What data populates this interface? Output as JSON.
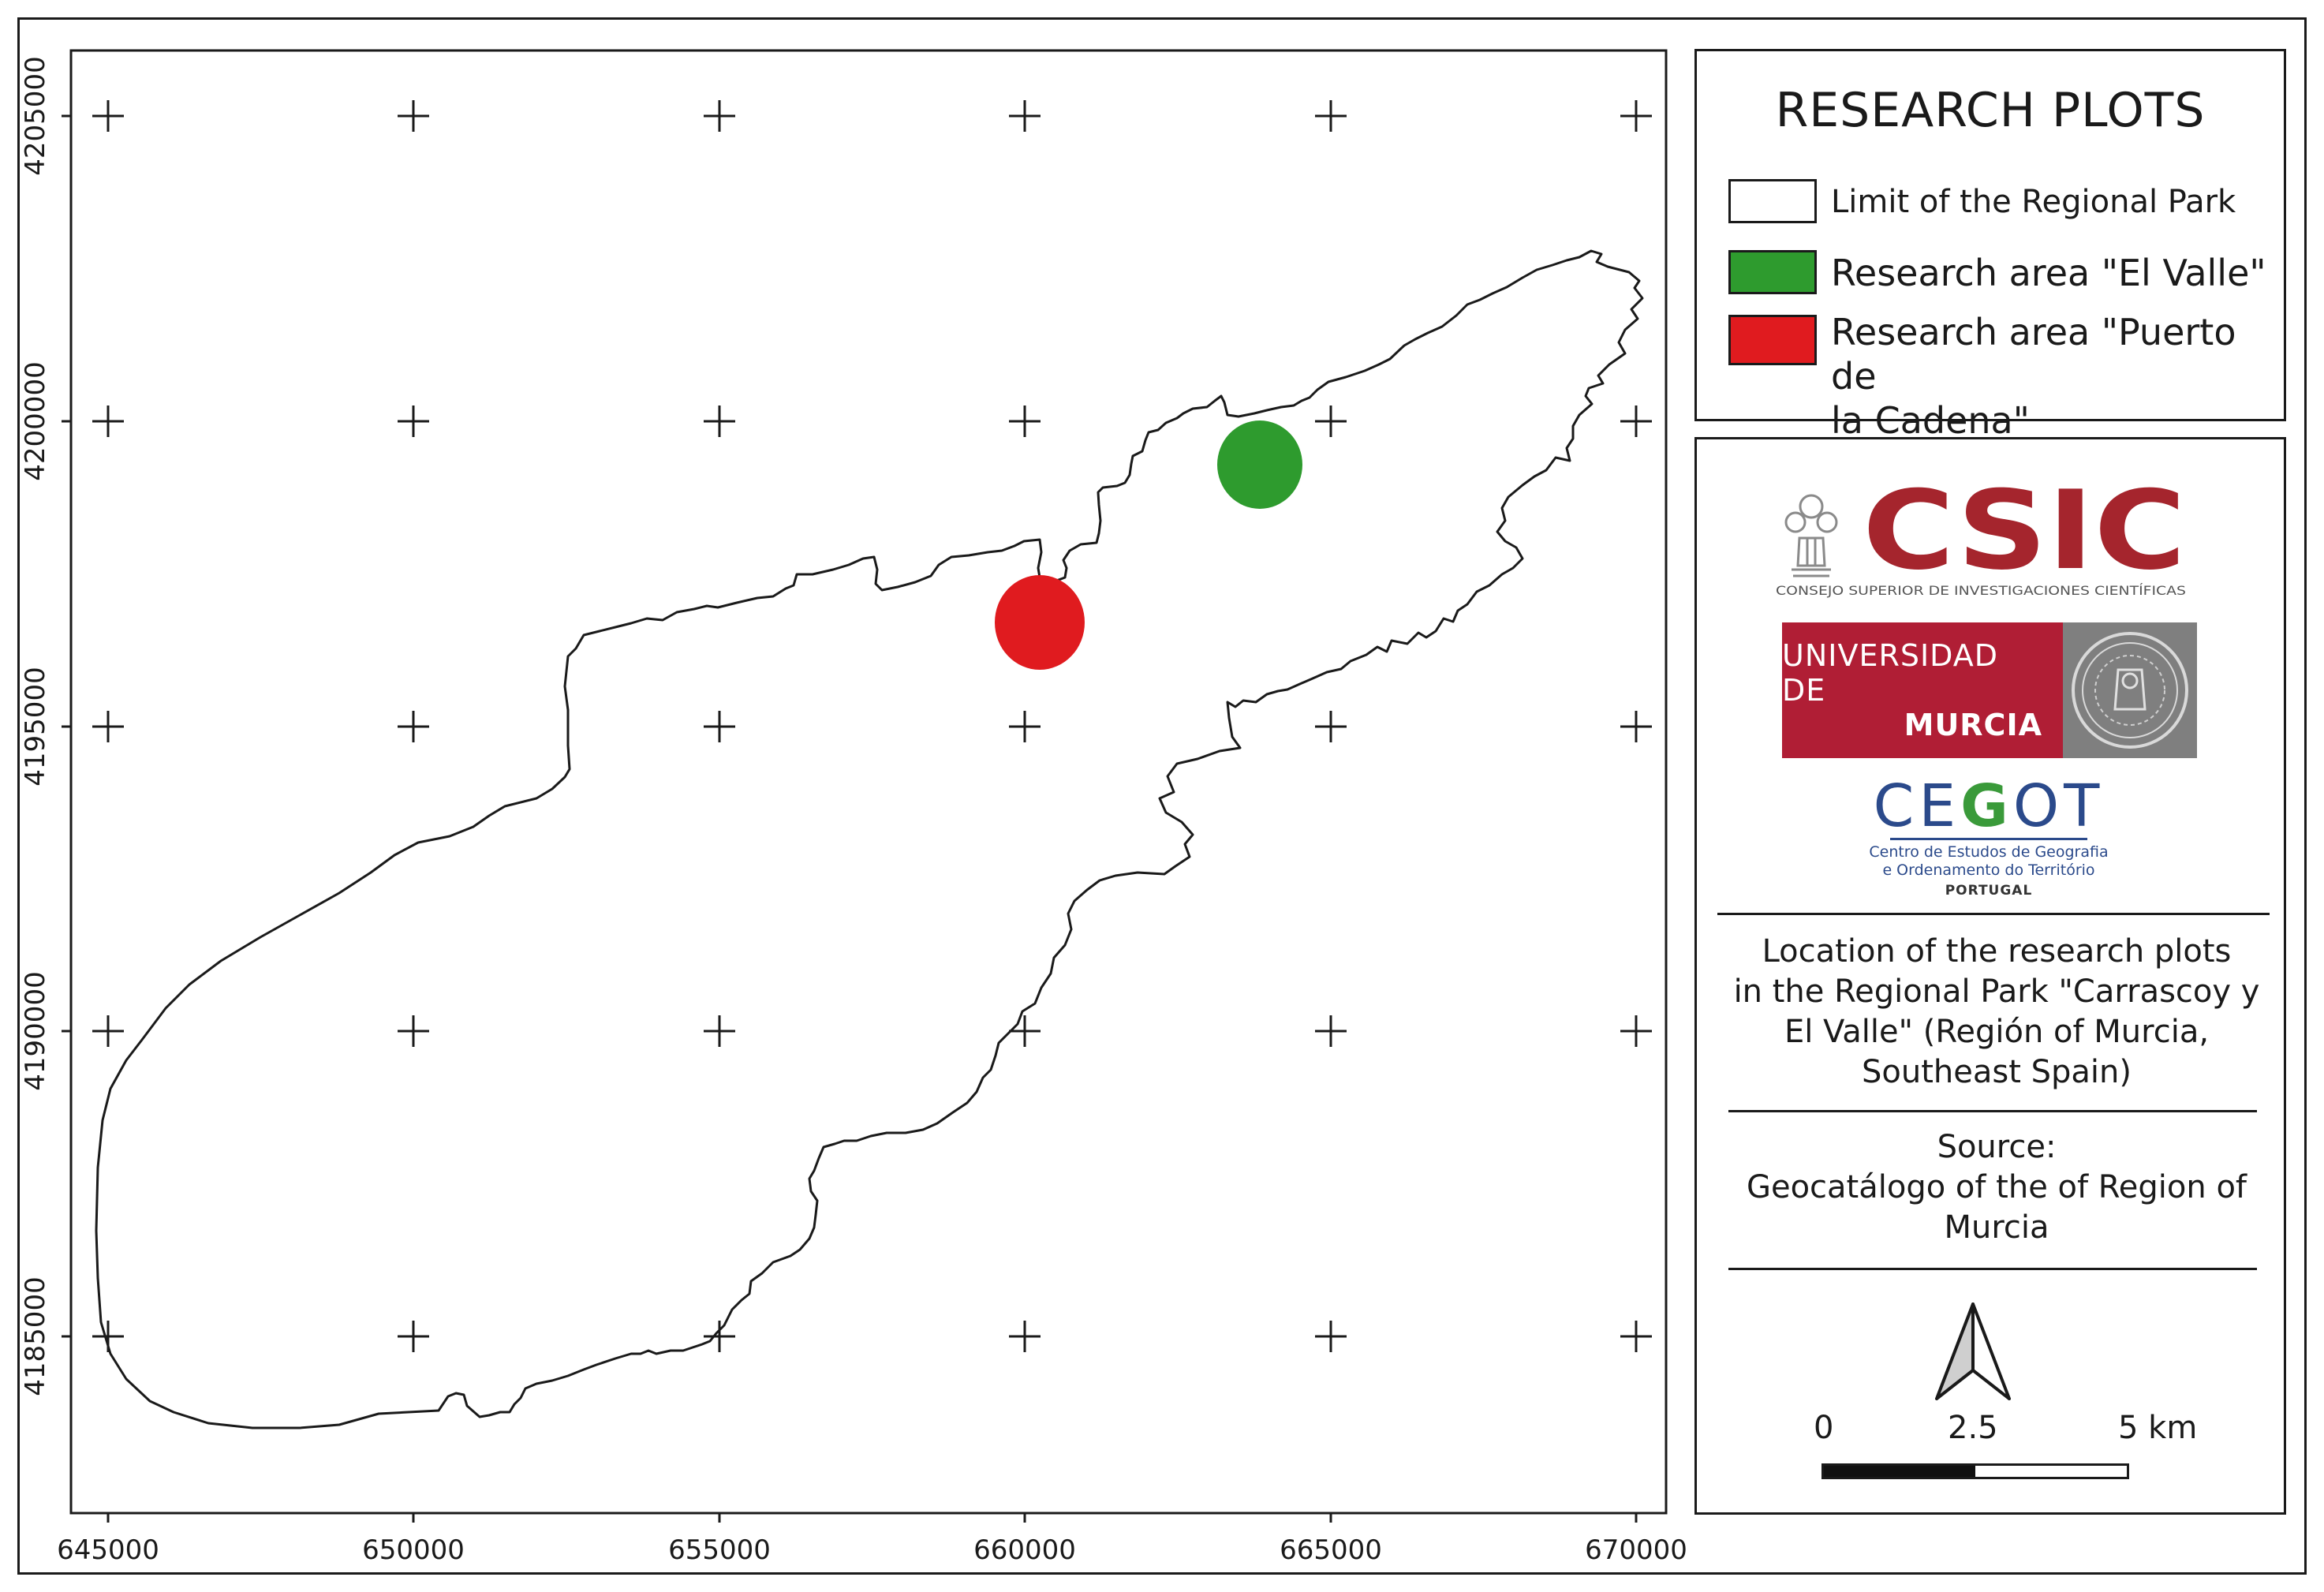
{
  "map": {
    "x_ticks": [
      "645000",
      "650000",
      "655000",
      "660000",
      "665000",
      "670000"
    ],
    "y_ticks": [
      "4205000",
      "4200000",
      "4195000",
      "4190000",
      "4185000"
    ]
  },
  "legend": {
    "title": "RESEARCH PLOTS",
    "items": [
      {
        "label": "Limit of the Regional Park",
        "color": "#ffffff"
      },
      {
        "label": "Research area \"El Valle\"",
        "color": "#2e9b2e"
      },
      {
        "label_line1": "Research area \"Puerto de",
        "label_line2": "la Cadena\"",
        "color": "#e01b1f"
      }
    ]
  },
  "logos": {
    "csic_word": "CSIC",
    "csic_sub": "CONSEJO SUPERIOR DE INVESTIGACIONES CIENTÍFICAS",
    "um_line1": "UNIVERSIDAD DE",
    "um_line2": "MURCIA",
    "cegot_pre": "CE",
    "cegot_g": "G",
    "cegot_post": "OT",
    "cegot_sub1": "Centro de Estudos de Geografia",
    "cegot_sub2": "e Ordenamento do Território",
    "cegot_country": "PORTUGAL"
  },
  "description": {
    "lines": [
      "Location of the research plots",
      "in the Regional Park \"Carrascoy y",
      "El Valle\" (Región of Murcia,",
      "Southeast Spain)"
    ]
  },
  "source": {
    "lines": [
      "Source:",
      "Geocatálogo of the of Region of",
      "Murcia"
    ]
  },
  "scale_bar": {
    "labels": [
      "0",
      "2.5",
      "5 km"
    ]
  },
  "colors": {
    "csic_red": "#a5252d",
    "um_red": "#b01e35",
    "cegot_blue": "#2b4a8b",
    "cegot_green": "#3a9a3a"
  }
}
